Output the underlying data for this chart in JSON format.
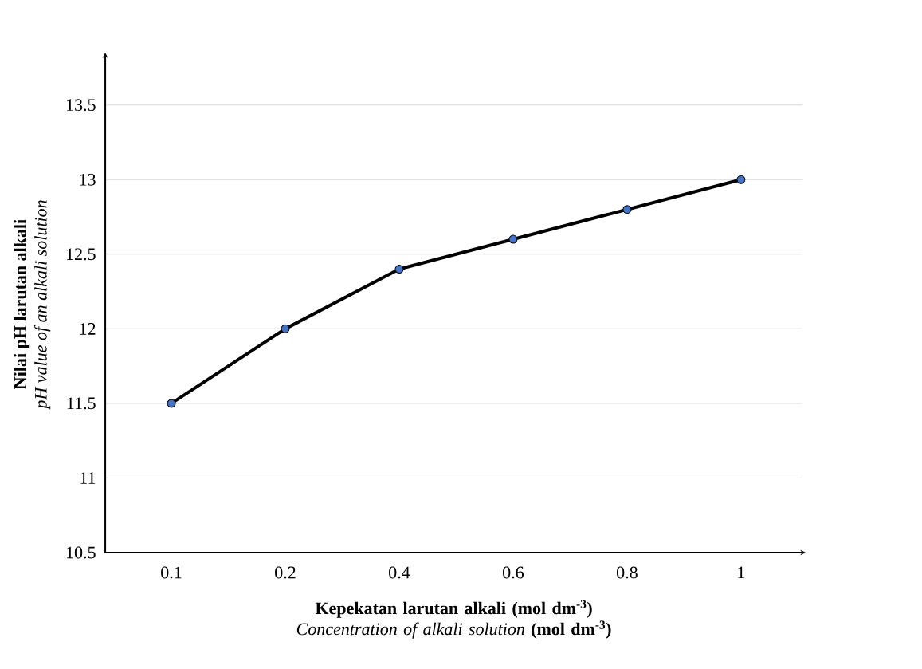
{
  "chart_data": {
    "type": "line",
    "xlabel": "**Kepekatan larutan alkali (mol dm$^{-3}$)** *Concentration of alkali solution* **(mol dm$^{-3}$)**",
    "ylabel": "**Nilai pH larutan alkali** *pH value of an alkali solution*",
    "categories": [
      "0.1",
      "0.2",
      "0.4",
      "0.6",
      "0.8",
      "1"
    ],
    "series": [
      {
        "color": "#000000",
        "colors": [
          "#4472c4",
          "#4472c4",
          "#4472c4",
          "#4472c4",
          "#4472c4",
          "#4472c4"
        ],
        "values": [
          11.5,
          12,
          12.4,
          12.6,
          12.8,
          13
        ]
      }
    ],
    "ylim": [
      10.5,
      13.83
    ],
    "yticks": [
      10.5,
      11,
      11.5,
      12,
      12.5,
      13,
      13.5
    ],
    "grid": "y",
    "marker": "circle",
    "line_style": "solid"
  }
}
